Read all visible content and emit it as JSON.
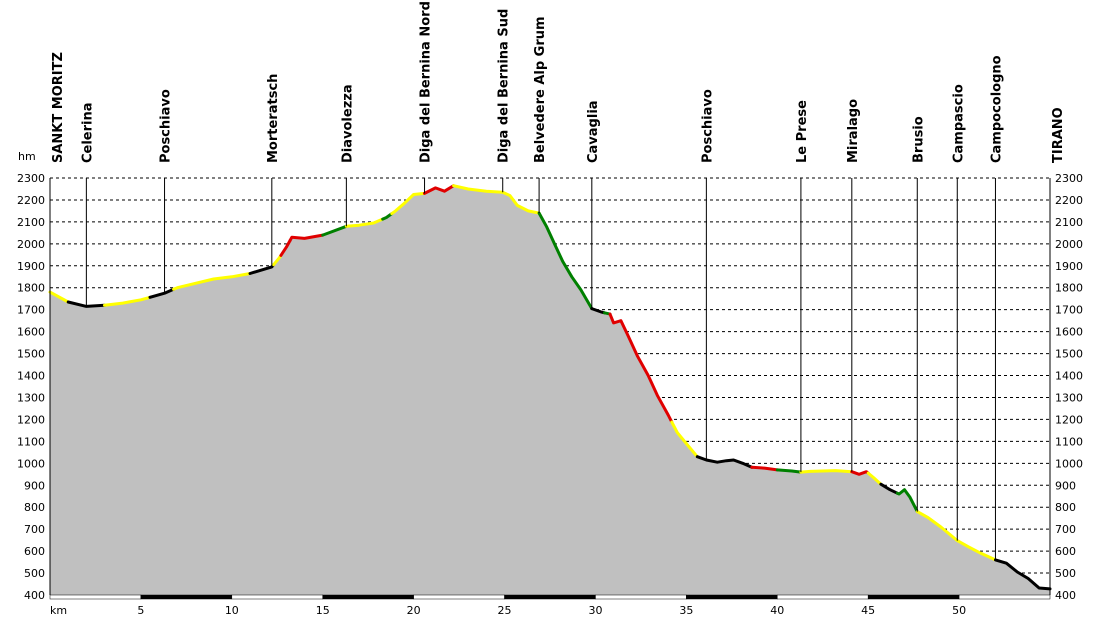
{
  "chart_data": {
    "type": "area",
    "ylabel": "hm",
    "xlabel": "km",
    "xlim": [
      0,
      55
    ],
    "ylim": [
      400,
      2300
    ],
    "y_ticks": [
      400,
      500,
      600,
      700,
      800,
      900,
      1000,
      1100,
      1200,
      1300,
      1400,
      1500,
      1600,
      1700,
      1800,
      1900,
      2000,
      2100,
      2200,
      2300
    ],
    "x_ticks": [
      5,
      10,
      15,
      20,
      25,
      30,
      35,
      40,
      45,
      50
    ],
    "grid": true,
    "fill_color": "#c0c0c0",
    "gradient_colors": {
      "black": "#000000",
      "yellow": "#ffff00",
      "green": "#008000",
      "red": "#e00000"
    },
    "stations": [
      {
        "name": "SANKT MORITZ",
        "km": 0
      },
      {
        "name": "Celerina",
        "km": 2.0
      },
      {
        "name": "Poschiavo",
        "km": 6.3
      },
      {
        "name": "Morteratsch",
        "km": 12.2
      },
      {
        "name": "Diavolezza",
        "km": 16.3
      },
      {
        "name": "Diga del Bernina Nord",
        "km": 20.6
      },
      {
        "name": "Diga del Bernina Sud",
        "km": 24.9
      },
      {
        "name": "Belvedere Alp Grum",
        "km": 26.9
      },
      {
        "name": "Cavaglia",
        "km": 29.8
      },
      {
        "name": "Poschiavo",
        "km": 36.1
      },
      {
        "name": "Le Prese",
        "km": 41.3
      },
      {
        "name": "Miralago",
        "km": 44.1
      },
      {
        "name": "Brusio",
        "km": 47.7
      },
      {
        "name": "Campascio",
        "km": 49.9
      },
      {
        "name": "Campocologno",
        "km": 52.0
      },
      {
        "name": "TIRANO",
        "km": 55.0
      }
    ],
    "profile": [
      {
        "x": 0,
        "y": 1780
      },
      {
        "x": 1.0,
        "y": 1735
      },
      {
        "x": 2.0,
        "y": 1715
      },
      {
        "x": 3.0,
        "y": 1720
      },
      {
        "x": 4.0,
        "y": 1730
      },
      {
        "x": 5.0,
        "y": 1745
      },
      {
        "x": 6.3,
        "y": 1775
      },
      {
        "x": 7.0,
        "y": 1800
      },
      {
        "x": 8.0,
        "y": 1820
      },
      {
        "x": 9.0,
        "y": 1840
      },
      {
        "x": 10.0,
        "y": 1850
      },
      {
        "x": 11.0,
        "y": 1865
      },
      {
        "x": 12.2,
        "y": 1895
      },
      {
        "x": 12.6,
        "y": 1935
      },
      {
        "x": 13.0,
        "y": 1985
      },
      {
        "x": 13.3,
        "y": 2030
      },
      {
        "x": 14.0,
        "y": 2025
      },
      {
        "x": 15.0,
        "y": 2040
      },
      {
        "x": 16.3,
        "y": 2080
      },
      {
        "x": 17.0,
        "y": 2085
      },
      {
        "x": 17.8,
        "y": 2095
      },
      {
        "x": 18.5,
        "y": 2120
      },
      {
        "x": 19.0,
        "y": 2150
      },
      {
        "x": 19.5,
        "y": 2185
      },
      {
        "x": 20.0,
        "y": 2225
      },
      {
        "x": 20.6,
        "y": 2230
      },
      {
        "x": 21.2,
        "y": 2255
      },
      {
        "x": 21.7,
        "y": 2240
      },
      {
        "x": 22.2,
        "y": 2265
      },
      {
        "x": 23.0,
        "y": 2250
      },
      {
        "x": 24.0,
        "y": 2240
      },
      {
        "x": 24.9,
        "y": 2235
      },
      {
        "x": 25.3,
        "y": 2220
      },
      {
        "x": 25.7,
        "y": 2175
      },
      {
        "x": 26.3,
        "y": 2150
      },
      {
        "x": 26.9,
        "y": 2140
      },
      {
        "x": 27.3,
        "y": 2080
      },
      {
        "x": 27.8,
        "y": 1990
      },
      {
        "x": 28.2,
        "y": 1920
      },
      {
        "x": 28.7,
        "y": 1850
      },
      {
        "x": 29.2,
        "y": 1790
      },
      {
        "x": 29.8,
        "y": 1705
      },
      {
        "x": 30.3,
        "y": 1690
      },
      {
        "x": 30.8,
        "y": 1680
      },
      {
        "x": 31.0,
        "y": 1640
      },
      {
        "x": 31.4,
        "y": 1650
      },
      {
        "x": 31.8,
        "y": 1580
      },
      {
        "x": 32.3,
        "y": 1490
      },
      {
        "x": 32.9,
        "y": 1400
      },
      {
        "x": 33.4,
        "y": 1310
      },
      {
        "x": 34.0,
        "y": 1220
      },
      {
        "x": 34.5,
        "y": 1140
      },
      {
        "x": 35.2,
        "y": 1070
      },
      {
        "x": 35.6,
        "y": 1030
      },
      {
        "x": 36.1,
        "y": 1015
      },
      {
        "x": 36.7,
        "y": 1005
      },
      {
        "x": 37.2,
        "y": 1012
      },
      {
        "x": 37.6,
        "y": 1015
      },
      {
        "x": 38.1,
        "y": 1000
      },
      {
        "x": 38.6,
        "y": 982
      },
      {
        "x": 39.3,
        "y": 978
      },
      {
        "x": 40.0,
        "y": 970
      },
      {
        "x": 40.8,
        "y": 965
      },
      {
        "x": 41.3,
        "y": 960
      },
      {
        "x": 41.8,
        "y": 963
      },
      {
        "x": 42.5,
        "y": 965
      },
      {
        "x": 43.2,
        "y": 967
      },
      {
        "x": 44.1,
        "y": 962
      },
      {
        "x": 44.5,
        "y": 950
      },
      {
        "x": 44.9,
        "y": 962
      },
      {
        "x": 45.3,
        "y": 935
      },
      {
        "x": 45.7,
        "y": 905
      },
      {
        "x": 46.2,
        "y": 880
      },
      {
        "x": 46.7,
        "y": 860
      },
      {
        "x": 47.0,
        "y": 880
      },
      {
        "x": 47.3,
        "y": 845
      },
      {
        "x": 47.7,
        "y": 780
      },
      {
        "x": 48.3,
        "y": 752
      },
      {
        "x": 49.0,
        "y": 710
      },
      {
        "x": 49.9,
        "y": 648
      },
      {
        "x": 50.5,
        "y": 620
      },
      {
        "x": 51.2,
        "y": 590
      },
      {
        "x": 52.0,
        "y": 560
      },
      {
        "x": 52.6,
        "y": 545
      },
      {
        "x": 53.2,
        "y": 505
      },
      {
        "x": 53.8,
        "y": 475
      },
      {
        "x": 54.4,
        "y": 432
      },
      {
        "x": 55.0,
        "y": 428
      }
    ],
    "segments": [
      {
        "from": 0,
        "to": 1.0,
        "color": "yellow"
      },
      {
        "from": 1.0,
        "to": 3.0,
        "color": "black"
      },
      {
        "from": 3.0,
        "to": 5.5,
        "color": "yellow"
      },
      {
        "from": 5.5,
        "to": 6.8,
        "color": "black"
      },
      {
        "from": 6.8,
        "to": 11.0,
        "color": "yellow"
      },
      {
        "from": 11.0,
        "to": 12.3,
        "color": "black"
      },
      {
        "from": 12.3,
        "to": 12.7,
        "color": "yellow"
      },
      {
        "from": 12.7,
        "to": 13.2,
        "color": "red"
      },
      {
        "from": 13.2,
        "to": 15.0,
        "color": "red"
      },
      {
        "from": 15.0,
        "to": 16.3,
        "color": "green"
      },
      {
        "from": 16.3,
        "to": 18.3,
        "color": "yellow"
      },
      {
        "from": 18.3,
        "to": 18.8,
        "color": "green"
      },
      {
        "from": 18.8,
        "to": 20.6,
        "color": "yellow"
      },
      {
        "from": 20.6,
        "to": 22.2,
        "color": "red"
      },
      {
        "from": 22.2,
        "to": 26.9,
        "color": "yellow"
      },
      {
        "from": 26.9,
        "to": 29.8,
        "color": "green"
      },
      {
        "from": 29.8,
        "to": 30.5,
        "color": "black"
      },
      {
        "from": 30.5,
        "to": 30.8,
        "color": "green"
      },
      {
        "from": 30.8,
        "to": 34.2,
        "color": "red"
      },
      {
        "from": 34.2,
        "to": 35.6,
        "color": "yellow"
      },
      {
        "from": 35.6,
        "to": 38.6,
        "color": "black"
      },
      {
        "from": 38.6,
        "to": 40.0,
        "color": "red"
      },
      {
        "from": 40.0,
        "to": 41.3,
        "color": "green"
      },
      {
        "from": 41.3,
        "to": 44.1,
        "color": "yellow"
      },
      {
        "from": 44.1,
        "to": 45.0,
        "color": "red"
      },
      {
        "from": 45.0,
        "to": 45.7,
        "color": "yellow"
      },
      {
        "from": 45.7,
        "to": 46.6,
        "color": "black"
      },
      {
        "from": 46.6,
        "to": 47.7,
        "color": "green"
      },
      {
        "from": 47.7,
        "to": 52.0,
        "color": "yellow"
      },
      {
        "from": 52.0,
        "to": 55.0,
        "color": "black"
      }
    ]
  }
}
